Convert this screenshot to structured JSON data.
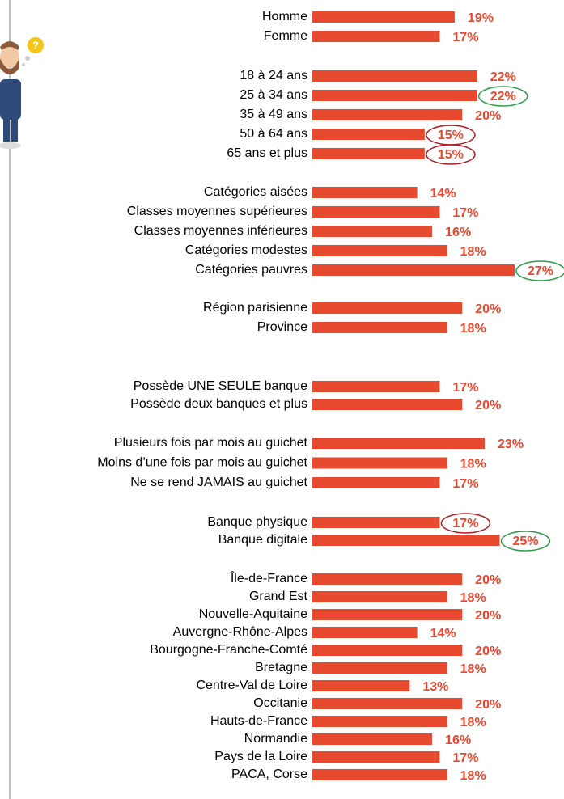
{
  "chart_data": {
    "type": "bar",
    "orientation": "horizontal",
    "color": "#e84a2f",
    "xlim": [
      0,
      30
    ],
    "groups": [
      {
        "categories": [
          "Homme",
          "Femme"
        ],
        "values": [
          19,
          17
        ],
        "value_labels": [
          "19%",
          "17%"
        ],
        "circled": [
          null,
          null
        ]
      },
      {
        "categories": [
          "18 à 24 ans",
          "25 à 34 ans",
          "35 à 49 ans",
          "50 à 64 ans",
          "65 ans et plus"
        ],
        "values": [
          22,
          22,
          20,
          15,
          15
        ],
        "value_labels": [
          "22%",
          "22%",
          "20%",
          "15%",
          "15%"
        ],
        "circled": [
          null,
          "#2a9d4a",
          null,
          "#b01c24",
          "#b01c24"
        ]
      },
      {
        "categories": [
          "Catégories aisées",
          "Classes moyennes supérieures",
          "Classes moyennes inférieures",
          "Catégories modestes",
          "Catégories pauvres"
        ],
        "values": [
          14,
          17,
          16,
          18,
          27
        ],
        "value_labels": [
          "14%",
          "17%",
          "16%",
          "18%",
          "27%"
        ],
        "circled": [
          null,
          null,
          null,
          null,
          "#2a9d4a"
        ]
      },
      {
        "categories": [
          "Région parisienne",
          "Province"
        ],
        "values": [
          20,
          18
        ],
        "value_labels": [
          "20%",
          "18%"
        ],
        "circled": [
          null,
          null
        ]
      },
      {
        "categories": [
          "Possède UNE SEULE banque",
          "Possède deux banques et plus"
        ],
        "values": [
          17,
          20
        ],
        "value_labels": [
          "17%",
          "20%"
        ],
        "circled": [
          null,
          null
        ]
      },
      {
        "categories": [
          "Plusieurs fois par mois  au guichet",
          "Moins d’une fois par mois au guichet",
          "Ne se rend JAMAIS au guichet"
        ],
        "values": [
          23,
          18,
          17
        ],
        "value_labels": [
          "23%",
          "18%",
          "17%"
        ],
        "circled": [
          null,
          null,
          null
        ]
      },
      {
        "categories": [
          "Banque physique",
          "Banque digitale"
        ],
        "values": [
          17,
          25
        ],
        "value_labels": [
          "17%",
          "25%"
        ],
        "circled": [
          "#b01c24",
          "#2a9d4a"
        ]
      },
      {
        "categories": [
          "Île-de-France",
          "Grand Est",
          "Nouvelle-Aquitaine",
          "Auvergne-Rhône-Alpes",
          "Bourgogne-Franche-Comté",
          "Bretagne",
          "Centre-Val de Loire",
          "Occitanie",
          "Hauts-de-France",
          "Normandie",
          "Pays de la Loire",
          "PACA, Corse"
        ],
        "values": [
          20,
          18,
          20,
          14,
          20,
          18,
          13,
          20,
          18,
          16,
          17,
          18
        ],
        "value_labels": [
          "20%",
          "18%",
          "20%",
          "14%",
          "20%",
          "18%",
          "13%",
          "20%",
          "18%",
          "16%",
          "17%",
          "18%"
        ],
        "circled": [
          null,
          null,
          null,
          null,
          null,
          null,
          null,
          null,
          null,
          null,
          null,
          null
        ]
      }
    ]
  }
}
